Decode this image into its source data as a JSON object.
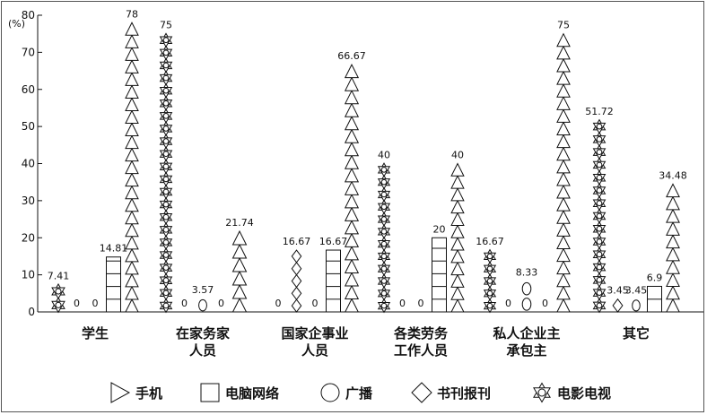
{
  "chart_data": {
    "type": "bar",
    "ylabel": "(%)",
    "ylim": [
      0,
      80
    ],
    "yticks": [
      0,
      10,
      20,
      30,
      40,
      50,
      60,
      70,
      80
    ],
    "legend_position": "bottom",
    "grid": false,
    "categories": [
      {
        "lines": [
          "学生"
        ]
      },
      {
        "lines": [
          "在家务家",
          "人员"
        ]
      },
      {
        "lines": [
          "国家企事业",
          "人员"
        ]
      },
      {
        "lines": [
          "各类劳务",
          "工作人员"
        ]
      },
      {
        "lines": [
          "私人企业主",
          "承包主"
        ]
      },
      {
        "lines": [
          "其它"
        ]
      }
    ],
    "series": [
      {
        "name": "电影电视",
        "marker": "star",
        "values": [
          7.41,
          75,
          0,
          40,
          16.67,
          51.72
        ],
        "labels": [
          "7.41",
          "75",
          "0",
          "40",
          "16.67",
          "51.72"
        ]
      },
      {
        "name": "书刊报刊",
        "marker": "diamond",
        "values": [
          0,
          0,
          16.67,
          0,
          0,
          3.45
        ],
        "labels": [
          "0",
          "0",
          "16.67",
          "0",
          "0",
          "3.45"
        ]
      },
      {
        "name": "广播",
        "marker": "circle",
        "values": [
          0,
          3.57,
          0,
          0,
          8.33,
          3.45
        ],
        "labels": [
          "0",
          "3.57",
          "0",
          "0",
          "8.33",
          "3.45"
        ]
      },
      {
        "name": "电脑网络",
        "marker": "square",
        "values": [
          14.81,
          0,
          16.67,
          20,
          0,
          6.9
        ],
        "labels": [
          "14.81",
          "0",
          "16.67",
          "20",
          "0",
          "6.9"
        ]
      },
      {
        "name": "手机",
        "marker": "triangle",
        "values": [
          78,
          21.74,
          66.67,
          40,
          75,
          34.48
        ],
        "labels": [
          "78",
          "21.74",
          "66.67",
          "40",
          "75",
          "34.48"
        ]
      }
    ],
    "legend_order": [
      "手机",
      "电脑网络",
      "广播",
      "书刊报刊",
      "电影电视"
    ]
  }
}
